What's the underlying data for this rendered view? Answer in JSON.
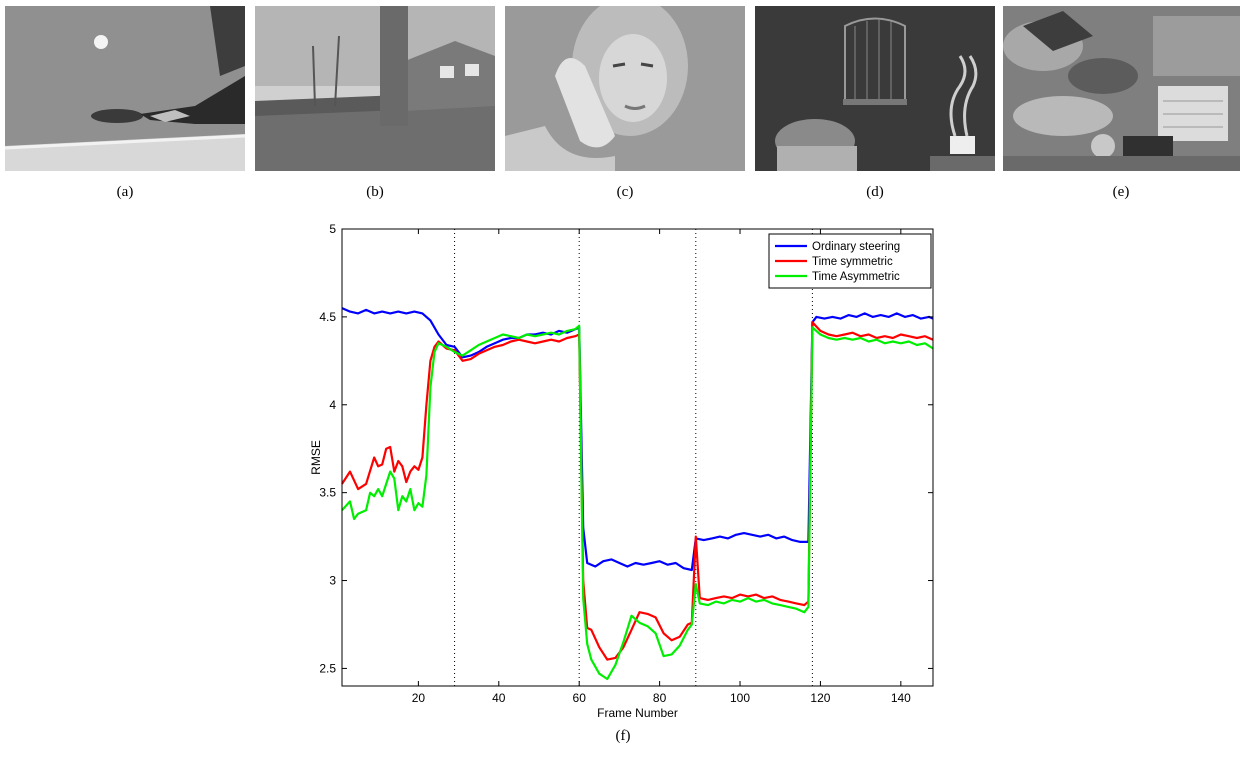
{
  "panels": [
    {
      "caption": "(a)",
      "subject": "table tennis player hitting ball"
    },
    {
      "caption": "(b)",
      "subject": "tree and houses over leaf-covered ground"
    },
    {
      "caption": "(c)",
      "subject": "woman on telephone"
    },
    {
      "caption": "(d)",
      "subject": "bird cage and basket still life"
    },
    {
      "caption": "(e)",
      "subject": "mobile and calendar toy scene"
    }
  ],
  "figure_caption": "(f)",
  "chart_data": {
    "type": "line",
    "xlabel": "Frame Number",
    "ylabel": "RMSE",
    "xlim": [
      1,
      148
    ],
    "ylim": [
      2.4,
      5
    ],
    "xticks": [
      20,
      40,
      60,
      80,
      100,
      120,
      140
    ],
    "yticks": [
      2.5,
      3,
      3.5,
      4,
      4.5,
      5
    ],
    "grid": false,
    "legend_position": "top-right",
    "scene_boundaries": [
      29,
      60,
      89,
      118
    ],
    "series": [
      {
        "name": "Ordinary steering",
        "color": "#0000ff",
        "points": [
          [
            1,
            4.55
          ],
          [
            3,
            4.53
          ],
          [
            5,
            4.52
          ],
          [
            7,
            4.54
          ],
          [
            9,
            4.52
          ],
          [
            11,
            4.53
          ],
          [
            13,
            4.52
          ],
          [
            15,
            4.53
          ],
          [
            17,
            4.52
          ],
          [
            19,
            4.53
          ],
          [
            21,
            4.52
          ],
          [
            23,
            4.48
          ],
          [
            25,
            4.4
          ],
          [
            27,
            4.34
          ],
          [
            29,
            4.33
          ],
          [
            30,
            4.3
          ],
          [
            31,
            4.27
          ],
          [
            33,
            4.28
          ],
          [
            35,
            4.3
          ],
          [
            37,
            4.33
          ],
          [
            39,
            4.35
          ],
          [
            41,
            4.37
          ],
          [
            43,
            4.38
          ],
          [
            45,
            4.38
          ],
          [
            47,
            4.4
          ],
          [
            49,
            4.4
          ],
          [
            51,
            4.41
          ],
          [
            53,
            4.4
          ],
          [
            55,
            4.42
          ],
          [
            57,
            4.41
          ],
          [
            59,
            4.43
          ],
          [
            60,
            4.44
          ],
          [
            61,
            3.3
          ],
          [
            62,
            3.1
          ],
          [
            64,
            3.08
          ],
          [
            66,
            3.11
          ],
          [
            68,
            3.12
          ],
          [
            70,
            3.1
          ],
          [
            72,
            3.08
          ],
          [
            74,
            3.1
          ],
          [
            76,
            3.09
          ],
          [
            78,
            3.1
          ],
          [
            80,
            3.11
          ],
          [
            82,
            3.09
          ],
          [
            84,
            3.1
          ],
          [
            86,
            3.07
          ],
          [
            88,
            3.06
          ],
          [
            89,
            3.24
          ],
          [
            91,
            3.23
          ],
          [
            93,
            3.24
          ],
          [
            95,
            3.25
          ],
          [
            97,
            3.24
          ],
          [
            99,
            3.26
          ],
          [
            101,
            3.27
          ],
          [
            103,
            3.26
          ],
          [
            105,
            3.25
          ],
          [
            107,
            3.26
          ],
          [
            109,
            3.24
          ],
          [
            111,
            3.25
          ],
          [
            113,
            3.23
          ],
          [
            115,
            3.22
          ],
          [
            117,
            3.22
          ],
          [
            118,
            4.47
          ],
          [
            119,
            4.5
          ],
          [
            121,
            4.49
          ],
          [
            123,
            4.5
          ],
          [
            125,
            4.49
          ],
          [
            127,
            4.51
          ],
          [
            129,
            4.5
          ],
          [
            131,
            4.52
          ],
          [
            133,
            4.5
          ],
          [
            135,
            4.51
          ],
          [
            137,
            4.5
          ],
          [
            139,
            4.52
          ],
          [
            141,
            4.5
          ],
          [
            143,
            4.51
          ],
          [
            145,
            4.49
          ],
          [
            147,
            4.5
          ],
          [
            148,
            4.49
          ]
        ]
      },
      {
        "name": "Time symmetric",
        "color": "#ff0000",
        "points": [
          [
            1,
            3.55
          ],
          [
            3,
            3.62
          ],
          [
            5,
            3.52
          ],
          [
            7,
            3.55
          ],
          [
            9,
            3.7
          ],
          [
            10,
            3.65
          ],
          [
            11,
            3.66
          ],
          [
            12,
            3.75
          ],
          [
            13,
            3.76
          ],
          [
            14,
            3.62
          ],
          [
            15,
            3.68
          ],
          [
            16,
            3.65
          ],
          [
            17,
            3.56
          ],
          [
            18,
            3.62
          ],
          [
            19,
            3.65
          ],
          [
            20,
            3.63
          ],
          [
            21,
            3.7
          ],
          [
            22,
            4.0
          ],
          [
            23,
            4.25
          ],
          [
            24,
            4.33
          ],
          [
            25,
            4.36
          ],
          [
            26,
            4.34
          ],
          [
            27,
            4.32
          ],
          [
            29,
            4.31
          ],
          [
            31,
            4.25
          ],
          [
            33,
            4.26
          ],
          [
            35,
            4.29
          ],
          [
            37,
            4.31
          ],
          [
            39,
            4.33
          ],
          [
            41,
            4.34
          ],
          [
            43,
            4.36
          ],
          [
            45,
            4.37
          ],
          [
            47,
            4.36
          ],
          [
            49,
            4.35
          ],
          [
            51,
            4.36
          ],
          [
            53,
            4.37
          ],
          [
            55,
            4.36
          ],
          [
            57,
            4.38
          ],
          [
            59,
            4.39
          ],
          [
            60,
            4.4
          ],
          [
            61,
            3.0
          ],
          [
            62,
            2.73
          ],
          [
            63,
            2.72
          ],
          [
            65,
            2.62
          ],
          [
            67,
            2.55
          ],
          [
            69,
            2.56
          ],
          [
            71,
            2.62
          ],
          [
            73,
            2.72
          ],
          [
            75,
            2.82
          ],
          [
            77,
            2.81
          ],
          [
            79,
            2.79
          ],
          [
            81,
            2.7
          ],
          [
            83,
            2.66
          ],
          [
            85,
            2.68
          ],
          [
            87,
            2.75
          ],
          [
            88,
            2.76
          ],
          [
            89,
            3.25
          ],
          [
            90,
            2.9
          ],
          [
            92,
            2.89
          ],
          [
            94,
            2.9
          ],
          [
            96,
            2.91
          ],
          [
            98,
            2.9
          ],
          [
            100,
            2.92
          ],
          [
            102,
            2.91
          ],
          [
            104,
            2.92
          ],
          [
            106,
            2.9
          ],
          [
            108,
            2.91
          ],
          [
            110,
            2.89
          ],
          [
            112,
            2.88
          ],
          [
            114,
            2.87
          ],
          [
            116,
            2.86
          ],
          [
            117,
            2.88
          ],
          [
            118,
            4.47
          ],
          [
            120,
            4.42
          ],
          [
            122,
            4.4
          ],
          [
            124,
            4.39
          ],
          [
            126,
            4.4
          ],
          [
            128,
            4.41
          ],
          [
            130,
            4.39
          ],
          [
            132,
            4.4
          ],
          [
            134,
            4.38
          ],
          [
            136,
            4.39
          ],
          [
            138,
            4.38
          ],
          [
            140,
            4.4
          ],
          [
            142,
            4.39
          ],
          [
            144,
            4.38
          ],
          [
            146,
            4.39
          ],
          [
            148,
            4.37
          ]
        ]
      },
      {
        "name": "Time Asymmetric",
        "color": "#00ee00",
        "points": [
          [
            1,
            3.4
          ],
          [
            3,
            3.45
          ],
          [
            4,
            3.35
          ],
          [
            5,
            3.38
          ],
          [
            7,
            3.4
          ],
          [
            8,
            3.5
          ],
          [
            9,
            3.48
          ],
          [
            10,
            3.52
          ],
          [
            11,
            3.48
          ],
          [
            12,
            3.55
          ],
          [
            13,
            3.62
          ],
          [
            14,
            3.58
          ],
          [
            15,
            3.4
          ],
          [
            16,
            3.48
          ],
          [
            17,
            3.45
          ],
          [
            18,
            3.52
          ],
          [
            19,
            3.4
          ],
          [
            20,
            3.44
          ],
          [
            21,
            3.42
          ],
          [
            22,
            3.6
          ],
          [
            23,
            4.1
          ],
          [
            24,
            4.3
          ],
          [
            25,
            4.35
          ],
          [
            27,
            4.33
          ],
          [
            29,
            4.3
          ],
          [
            31,
            4.28
          ],
          [
            33,
            4.31
          ],
          [
            35,
            4.34
          ],
          [
            37,
            4.36
          ],
          [
            39,
            4.38
          ],
          [
            41,
            4.4
          ],
          [
            43,
            4.39
          ],
          [
            45,
            4.38
          ],
          [
            47,
            4.4
          ],
          [
            49,
            4.39
          ],
          [
            51,
            4.4
          ],
          [
            53,
            4.41
          ],
          [
            55,
            4.4
          ],
          [
            57,
            4.42
          ],
          [
            59,
            4.43
          ],
          [
            60,
            4.45
          ],
          [
            61,
            2.9
          ],
          [
            62,
            2.64
          ],
          [
            63,
            2.55
          ],
          [
            65,
            2.47
          ],
          [
            67,
            2.44
          ],
          [
            69,
            2.52
          ],
          [
            71,
            2.65
          ],
          [
            73,
            2.8
          ],
          [
            75,
            2.76
          ],
          [
            77,
            2.74
          ],
          [
            79,
            2.7
          ],
          [
            81,
            2.57
          ],
          [
            83,
            2.58
          ],
          [
            85,
            2.63
          ],
          [
            87,
            2.72
          ],
          [
            88,
            2.75
          ],
          [
            89,
            2.98
          ],
          [
            90,
            2.87
          ],
          [
            92,
            2.86
          ],
          [
            94,
            2.88
          ],
          [
            96,
            2.87
          ],
          [
            98,
            2.89
          ],
          [
            100,
            2.88
          ],
          [
            102,
            2.9
          ],
          [
            104,
            2.88
          ],
          [
            106,
            2.89
          ],
          [
            108,
            2.87
          ],
          [
            110,
            2.86
          ],
          [
            112,
            2.85
          ],
          [
            114,
            2.84
          ],
          [
            116,
            2.82
          ],
          [
            117,
            2.85
          ],
          [
            118,
            4.44
          ],
          [
            120,
            4.4
          ],
          [
            122,
            4.38
          ],
          [
            124,
            4.37
          ],
          [
            126,
            4.38
          ],
          [
            128,
            4.37
          ],
          [
            130,
            4.38
          ],
          [
            132,
            4.36
          ],
          [
            134,
            4.37
          ],
          [
            136,
            4.35
          ],
          [
            138,
            4.36
          ],
          [
            140,
            4.35
          ],
          [
            142,
            4.36
          ],
          [
            144,
            4.34
          ],
          [
            146,
            4.35
          ],
          [
            148,
            4.32
          ]
        ]
      }
    ]
  }
}
